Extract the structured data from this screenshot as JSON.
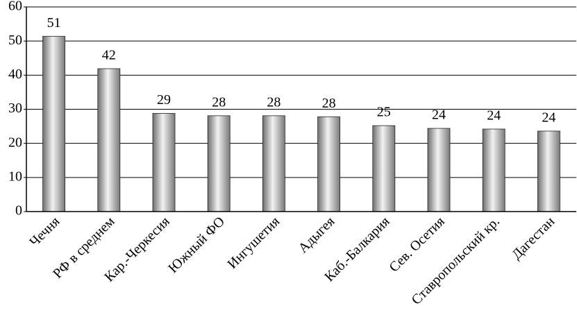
{
  "chart_data": {
    "type": "bar",
    "categories": [
      "Чечня",
      "РФ в среднем",
      "Кар.-Черкесия",
      "Южный ФО",
      "Ингушетия",
      "Адыгея",
      "Каб.-Балкария",
      "Сев. Осетия",
      "Ставропольский кр.",
      "Дагестан"
    ],
    "values": [
      51.4,
      41.9,
      28.8,
      28.1,
      28.1,
      27.8,
      25.2,
      24.4,
      24.2,
      23.6
    ],
    "value_labels": [
      "51",
      "42",
      "29",
      "28",
      "28",
      "28",
      "25",
      "24",
      "24",
      "24"
    ],
    "color": "#b0b0b0",
    "ylim": [
      0,
      60
    ],
    "yticks": [
      0,
      10,
      20,
      30,
      40,
      50,
      60
    ],
    "grid": true
  }
}
